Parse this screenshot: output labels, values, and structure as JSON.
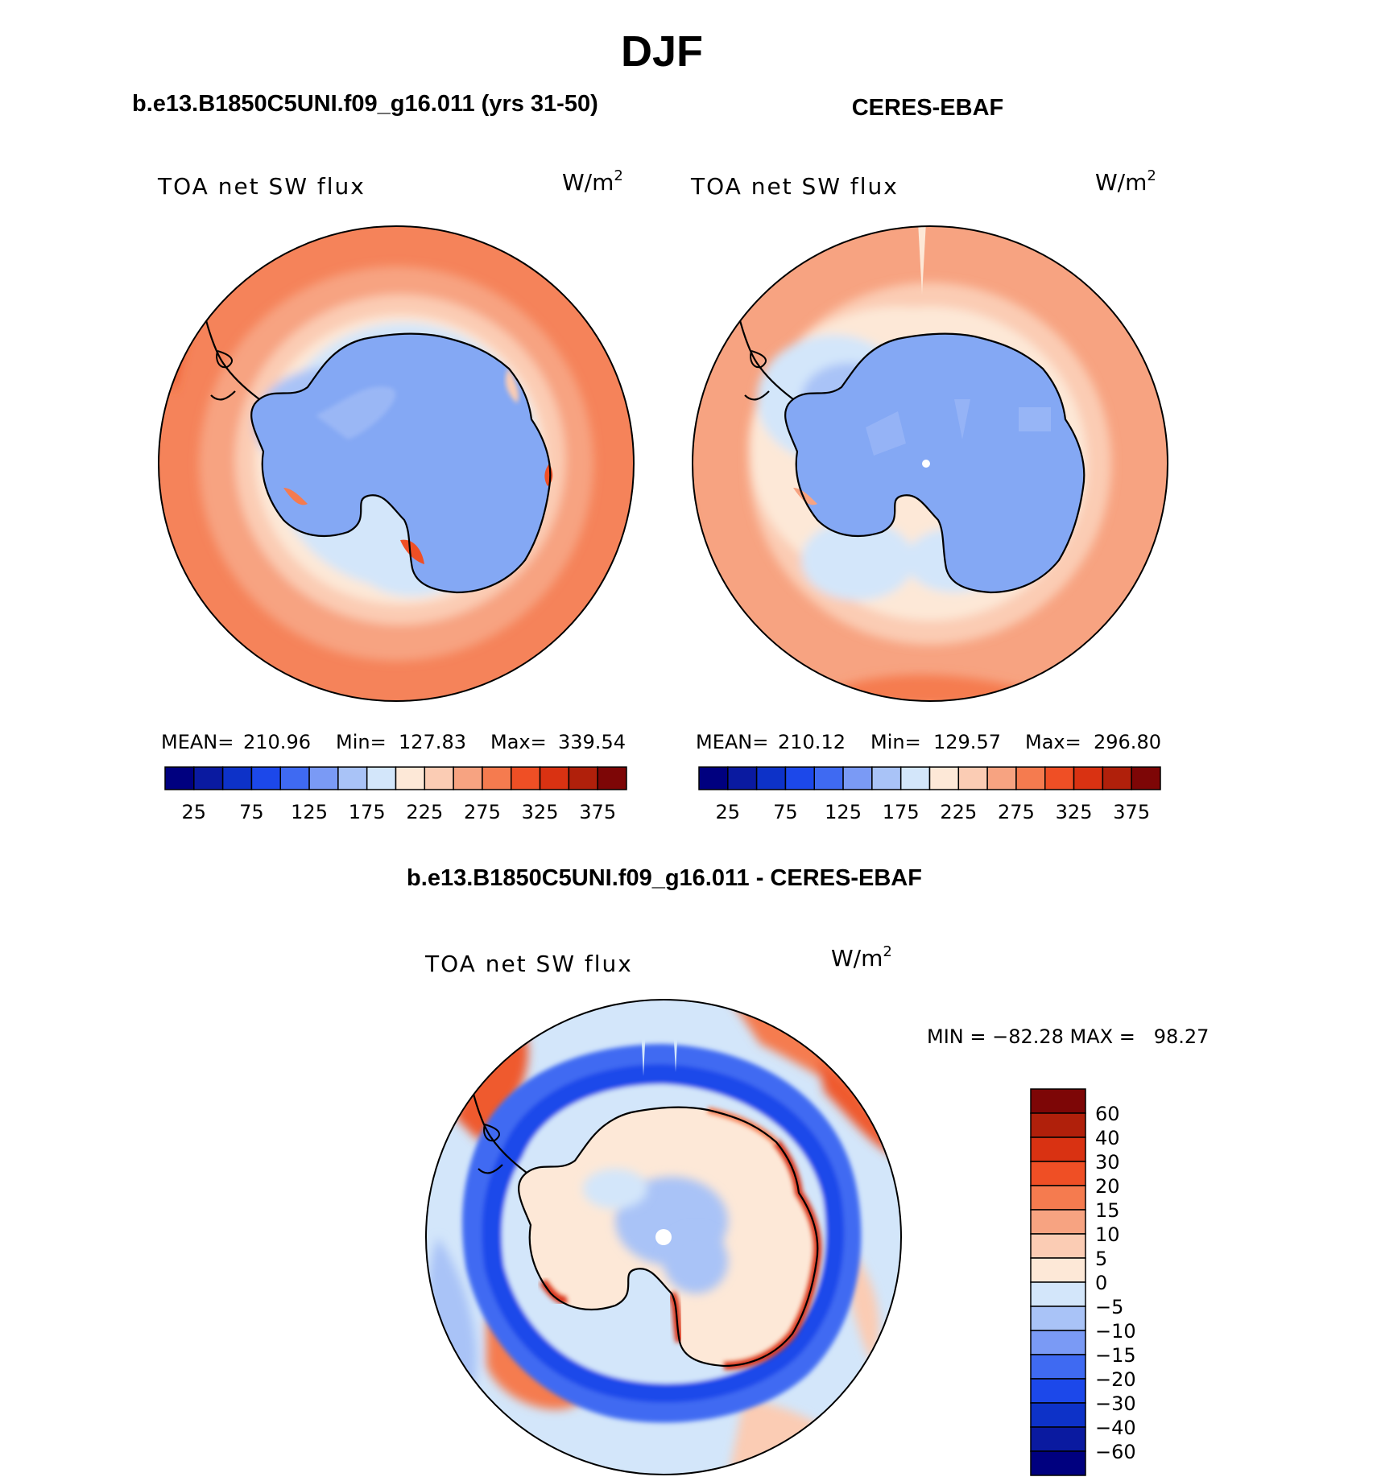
{
  "page": {
    "title": "DJF"
  },
  "chart_data": [
    {
      "type": "heatmap",
      "projection": "south-polar-stereographic",
      "title": "b.e13.B1850C5UNI.f09_g16.011 (yrs 31-50)",
      "variable": "TOA net SW flux",
      "units_base": "W/m",
      "units_exp": "2",
      "stats": {
        "mean_label": "MEAN=",
        "mean": "210.96",
        "min_label": "Min=",
        "min": "127.83",
        "max_label": "Max=",
        "max": "339.54"
      },
      "colorbar": {
        "orientation": "horizontal",
        "ticks": [
          "25",
          "75",
          "125",
          "175",
          "225",
          "275",
          "325",
          "375"
        ],
        "colors": [
          "#00007f",
          "#0a1aa0",
          "#0d32c8",
          "#1c48ea",
          "#3f6af2",
          "#7a9af5",
          "#a9c3f7",
          "#d3e6fa",
          "#fde8d7",
          "#fbccb4",
          "#f7a381",
          "#f57b4f",
          "#ef4f25",
          "#d93212",
          "#b0200b",
          "#7d0606"
        ]
      }
    },
    {
      "type": "heatmap",
      "projection": "south-polar-stereographic",
      "title": "CERES-EBAF",
      "variable": "TOA net SW flux",
      "units_base": "W/m",
      "units_exp": "2",
      "stats": {
        "mean_label": "MEAN=",
        "mean": "210.12",
        "min_label": "Min=",
        "min": "129.57",
        "max_label": "Max=",
        "max": "296.80"
      },
      "colorbar": {
        "orientation": "horizontal",
        "ticks": [
          "25",
          "75",
          "125",
          "175",
          "225",
          "275",
          "325",
          "375"
        ],
        "colors": [
          "#00007f",
          "#0a1aa0",
          "#0d32c8",
          "#1c48ea",
          "#3f6af2",
          "#7a9af5",
          "#a9c3f7",
          "#d3e6fa",
          "#fde8d7",
          "#fbccb4",
          "#f7a381",
          "#f57b4f",
          "#ef4f25",
          "#d93212",
          "#b0200b",
          "#7d0606"
        ]
      }
    },
    {
      "type": "heatmap",
      "projection": "south-polar-stereographic",
      "title": "b.e13.B1850C5UNI.f09_g16.011 - CERES-EBAF",
      "variable": "TOA net SW flux",
      "units_base": "W/m",
      "units_exp": "2",
      "stats_text": "MIN = −82.28 MAX =   98.27",
      "colorbar": {
        "orientation": "vertical",
        "ticks": [
          "60",
          "40",
          "30",
          "20",
          "15",
          "10",
          "5",
          "0",
          "−5",
          "−10",
          "−15",
          "−20",
          "−30",
          "−40",
          "−60"
        ],
        "colors": [
          "#7d0606",
          "#b0200b",
          "#d93212",
          "#ef4f25",
          "#f57b4f",
          "#f7a381",
          "#fbccb4",
          "#fde8d7",
          "#d3e6fa",
          "#a9c3f7",
          "#7a9af5",
          "#3f6af2",
          "#1c48ea",
          "#0d32c8",
          "#0a1aa0",
          "#00007f"
        ]
      }
    }
  ]
}
